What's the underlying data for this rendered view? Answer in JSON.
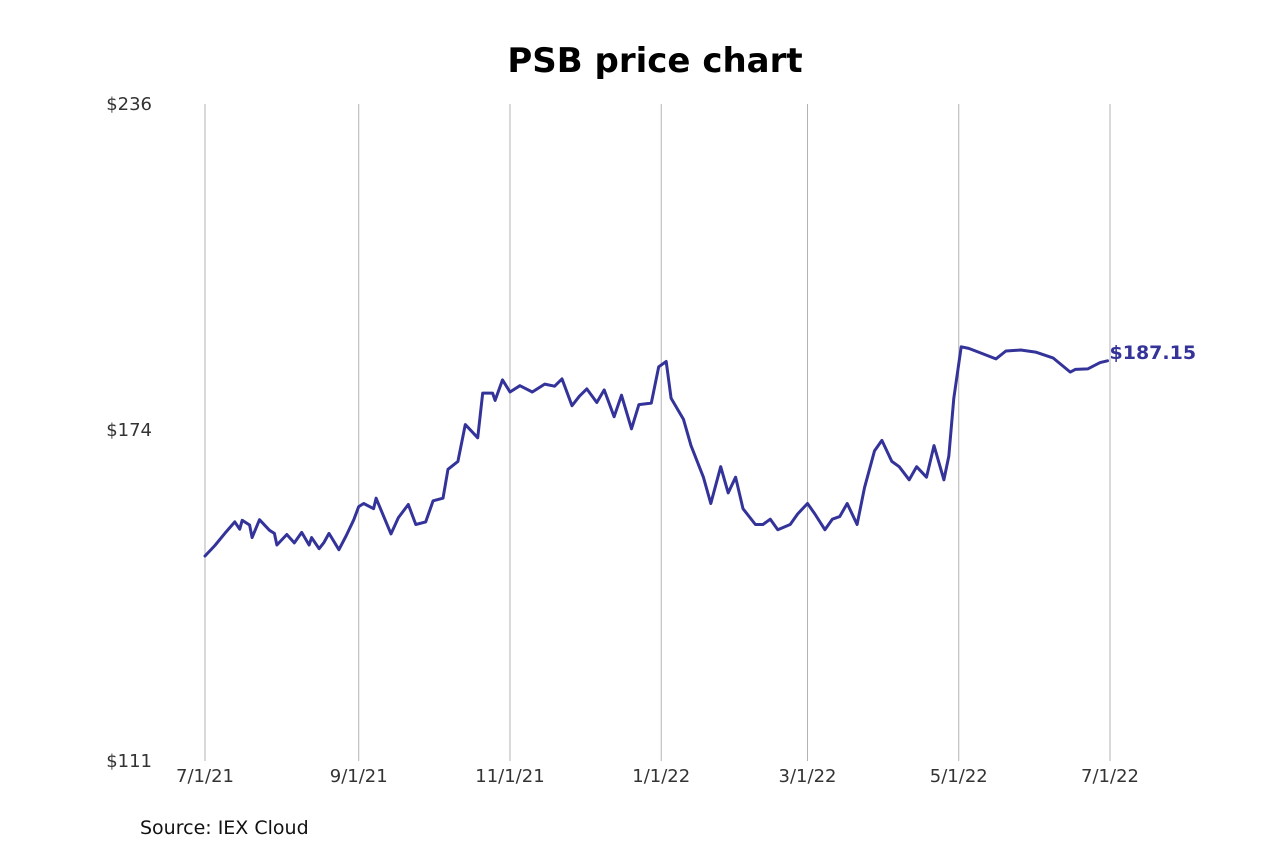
{
  "chart_data": {
    "type": "line",
    "title": "PSB price chart",
    "source": "Source: IEX Cloud",
    "xlabel": "",
    "ylabel": "",
    "y_ticks": [
      "$236",
      "$174",
      "$111"
    ],
    "y_tick_values": [
      236,
      174,
      111
    ],
    "ylim": [
      111,
      236
    ],
    "x_ticks": [
      "7/1/21",
      "9/1/21",
      "11/1/21",
      "1/1/22",
      "3/1/22",
      "5/1/22",
      "7/1/22"
    ],
    "x_tick_dates": [
      "2021-07-01",
      "2021-09-01",
      "2021-11-01",
      "2022-01-01",
      "2022-03-01",
      "2022-05-01",
      "2022-07-01"
    ],
    "grid": "vertical",
    "line_color": "#33339a",
    "last_value_label": "$187.15",
    "series": [
      {
        "x": [
          "2021-07-01",
          "2021-07-05",
          "2021-07-09",
          "2021-07-13",
          "2021-07-15",
          "2021-07-16",
          "2021-07-19",
          "2021-07-20",
          "2021-07-23",
          "2021-07-27",
          "2021-07-29",
          "2021-07-30",
          "2021-08-03",
          "2021-08-06",
          "2021-08-09",
          "2021-08-12",
          "2021-08-13",
          "2021-08-16",
          "2021-08-18",
          "2021-08-20",
          "2021-08-24",
          "2021-08-27",
          "2021-08-30",
          "2021-09-01",
          "2021-09-03",
          "2021-09-07",
          "2021-09-08",
          "2021-09-14",
          "2021-09-17",
          "2021-09-21",
          "2021-09-24",
          "2021-09-28",
          "2021-10-01",
          "2021-10-05",
          "2021-10-07",
          "2021-10-11",
          "2021-10-14",
          "2021-10-15",
          "2021-10-19",
          "2021-10-21",
          "2021-10-25",
          "2021-10-26",
          "2021-10-29",
          "2021-11-01",
          "2021-11-05",
          "2021-11-10",
          "2021-11-15",
          "2021-11-19",
          "2021-11-22",
          "2021-11-26",
          "2021-11-29",
          "2021-12-02",
          "2021-12-06",
          "2021-12-09",
          "2021-12-13",
          "2021-12-16",
          "2021-12-20",
          "2021-12-23",
          "2021-12-28",
          "2021-12-31",
          "2022-01-03",
          "2022-01-05",
          "2022-01-10",
          "2022-01-13",
          "2022-01-18",
          "2022-01-21",
          "2022-01-25",
          "2022-01-28",
          "2022-01-31",
          "2022-02-03",
          "2022-02-08",
          "2022-02-11",
          "2022-02-14",
          "2022-02-17",
          "2022-02-22",
          "2022-02-25",
          "2022-03-01",
          "2022-03-04",
          "2022-03-08",
          "2022-03-11",
          "2022-03-14",
          "2022-03-17",
          "2022-03-21",
          "2022-03-24",
          "2022-03-28",
          "2022-03-31",
          "2022-04-04",
          "2022-04-07",
          "2022-04-11",
          "2022-04-14",
          "2022-04-18",
          "2022-04-21",
          "2022-04-25",
          "2022-04-27",
          "2022-04-29",
          "2022-05-02",
          "2022-05-05",
          "2022-05-10",
          "2022-05-16",
          "2022-05-20",
          "2022-05-26",
          "2022-06-01",
          "2022-06-08",
          "2022-06-15",
          "2022-06-17",
          "2022-06-22",
          "2022-06-27",
          "2022-06-30"
        ],
        "values": [
          150.0,
          152.0,
          154.3,
          156.5,
          155.1,
          156.8,
          155.9,
          153.5,
          156.9,
          154.9,
          154.3,
          152.1,
          154.1,
          152.5,
          154.5,
          152.1,
          153.5,
          151.4,
          152.6,
          154.3,
          151.2,
          153.9,
          156.9,
          159.4,
          160.0,
          159.0,
          161.0,
          154.2,
          157.3,
          159.8,
          156.0,
          156.5,
          160.5,
          161.0,
          166.5,
          168.0,
          175.0,
          174.5,
          172.5,
          181.0,
          181.0,
          179.6,
          183.5,
          181.2,
          182.4,
          181.2,
          182.7,
          182.3,
          183.7,
          178.6,
          180.4,
          181.8,
          179.2,
          181.6,
          176.5,
          180.6,
          174.2,
          178.8,
          179.1,
          186.0,
          187.0,
          180.0,
          176.0,
          171.0,
          165.0,
          160.0,
          167.0,
          162.0,
          165.0,
          159.0,
          156.0,
          156.0,
          157.0,
          155.0,
          156.0,
          158.0,
          160.0,
          158.0,
          155.0,
          157.0,
          157.5,
          160.0,
          156.0,
          163.0,
          170.0,
          172.0,
          168.0,
          167.0,
          164.5,
          167.0,
          165.0,
          171.0,
          164.5,
          169.0,
          180.0,
          189.8,
          189.5,
          188.6,
          187.5,
          189.0,
          189.2,
          188.8,
          187.7,
          185.0,
          185.5,
          185.6,
          186.8,
          187.15
        ]
      }
    ]
  }
}
